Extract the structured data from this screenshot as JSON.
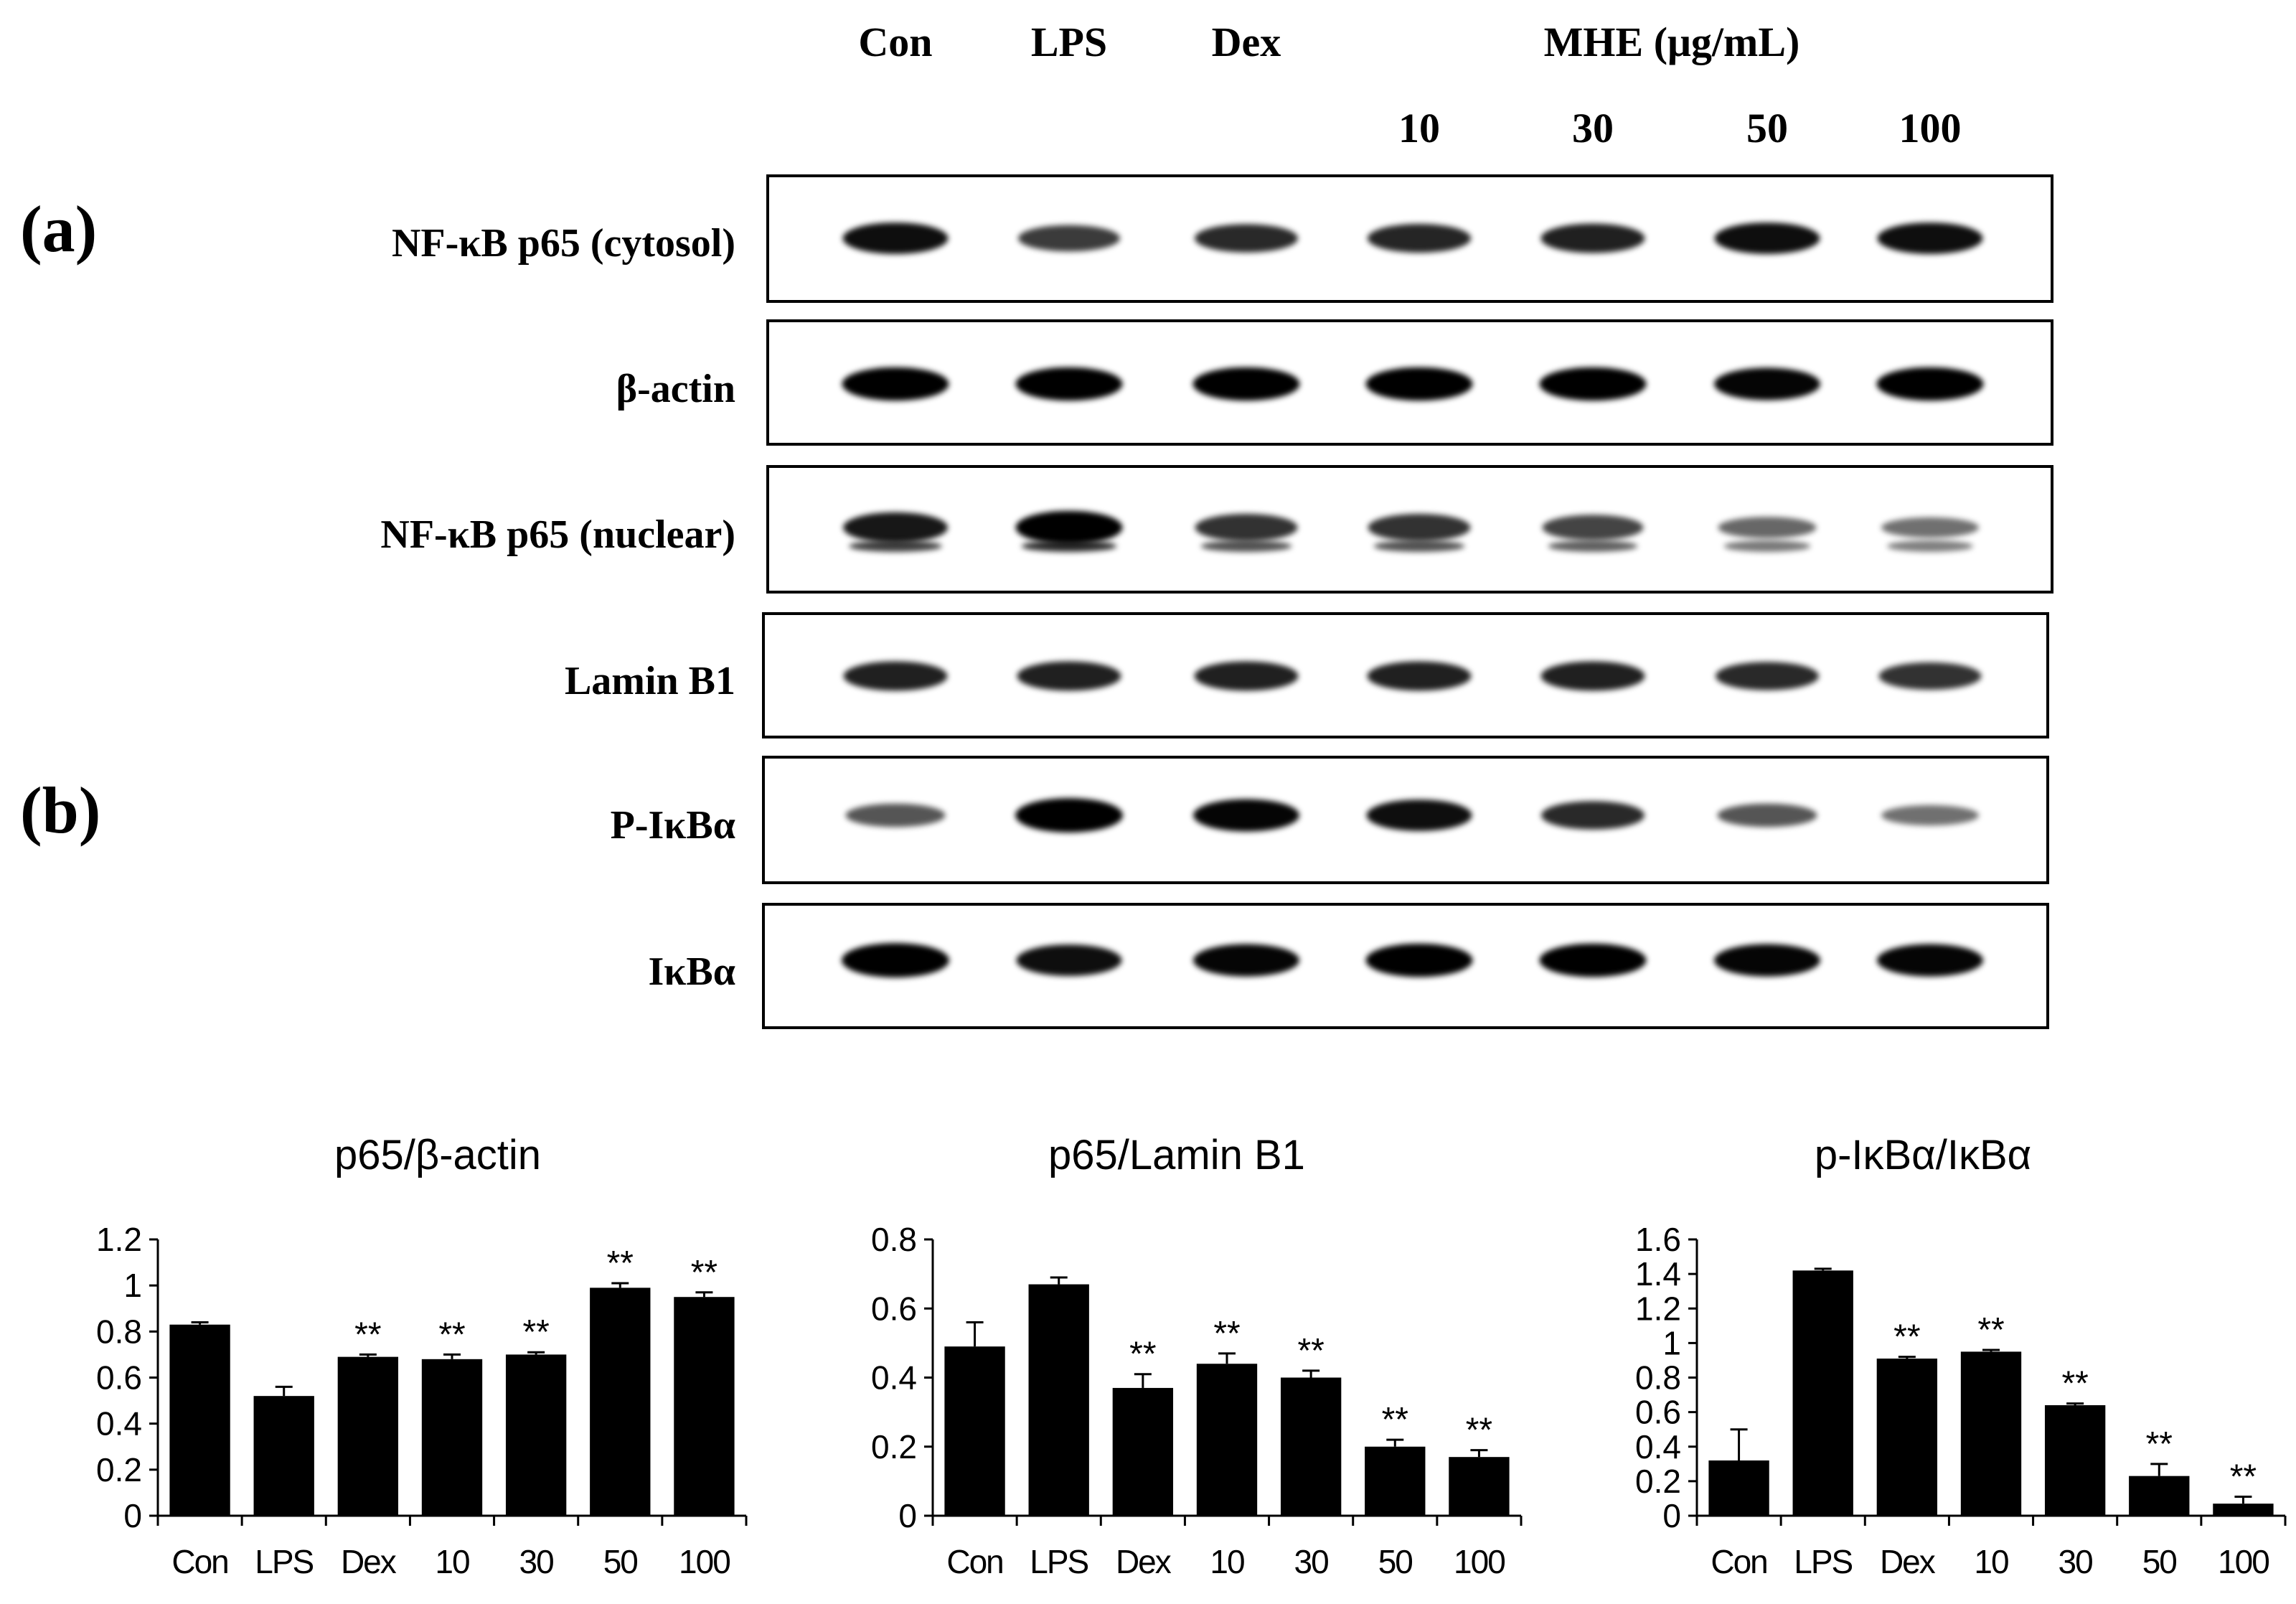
{
  "blot": {
    "column_headers": [
      "Con",
      "LPS",
      "Dex"
    ],
    "mhe_header": "MHE (μg/mL)",
    "doses": [
      "10",
      "30",
      "50",
      "100"
    ],
    "panel_a_label": "(a)",
    "panel_b_label": "(b)",
    "rows": [
      {
        "label": "NF-κB p65 (cytosol)",
        "intensity": [
          0.85,
          0.6,
          0.7,
          0.72,
          0.75,
          0.85,
          0.85
        ],
        "double": false
      },
      {
        "label": "β-actin",
        "intensity": [
          0.95,
          0.95,
          0.95,
          0.95,
          0.95,
          0.9,
          0.95
        ],
        "double": false
      },
      {
        "label": "NF-κB p65 (nuclear)",
        "intensity": [
          0.8,
          0.95,
          0.65,
          0.65,
          0.55,
          0.35,
          0.3
        ],
        "double": true
      },
      {
        "label": "Lamin B1",
        "intensity": [
          0.75,
          0.75,
          0.75,
          0.75,
          0.75,
          0.7,
          0.65
        ],
        "double": false
      },
      {
        "label": "P-IκBα",
        "intensity": [
          0.45,
          1.0,
          0.9,
          0.85,
          0.7,
          0.45,
          0.3
        ],
        "double": false
      },
      {
        "label": "IκBα",
        "intensity": [
          1.0,
          0.85,
          0.9,
          0.95,
          0.95,
          0.9,
          0.9
        ],
        "double": false
      }
    ]
  },
  "chart_data": [
    {
      "type": "bar",
      "title": "p65/β-actin",
      "categories": [
        "Con",
        "LPS",
        "Dex",
        "10",
        "30",
        "50",
        "100"
      ],
      "values": [
        0.83,
        0.52,
        0.69,
        0.68,
        0.7,
        0.99,
        0.95
      ],
      "errors": [
        0.01,
        0.04,
        0.01,
        0.02,
        0.01,
        0.02,
        0.02
      ],
      "annotations": [
        "",
        "",
        "**",
        "**",
        "**",
        "**",
        "**"
      ],
      "ylim": [
        0,
        1.2
      ],
      "yticks": [
        "0",
        "0.2",
        "0.4",
        "0.6",
        "0.8",
        "1",
        "1.2"
      ],
      "ytick_values": [
        0,
        0.2,
        0.4,
        0.6,
        0.8,
        1.0,
        1.2
      ],
      "xlabel": "",
      "ylabel": ""
    },
    {
      "type": "bar",
      "title": "p65/Lamin B1",
      "categories": [
        "Con",
        "LPS",
        "Dex",
        "10",
        "30",
        "50",
        "100"
      ],
      "values": [
        0.49,
        0.67,
        0.37,
        0.44,
        0.4,
        0.2,
        0.17
      ],
      "errors": [
        0.07,
        0.02,
        0.04,
        0.03,
        0.02,
        0.02,
        0.02
      ],
      "annotations": [
        "",
        "",
        "**",
        "**",
        "**",
        "**",
        "**"
      ],
      "ylim": [
        0,
        0.8
      ],
      "yticks": [
        "0",
        "0.2",
        "0.4",
        "0.6",
        "0.8"
      ],
      "ytick_values": [
        0,
        0.2,
        0.4,
        0.6,
        0.8
      ],
      "xlabel": "",
      "ylabel": ""
    },
    {
      "type": "bar",
      "title": "p-IκBα/IκBα",
      "categories": [
        "Con",
        "LPS",
        "Dex",
        "10",
        "30",
        "50",
        "100"
      ],
      "values": [
        0.32,
        1.42,
        0.91,
        0.95,
        0.64,
        0.23,
        0.07
      ],
      "errors": [
        0.18,
        0.01,
        0.01,
        0.01,
        0.01,
        0.07,
        0.04
      ],
      "annotations": [
        "",
        "",
        "**",
        "**",
        "**",
        "**",
        "**"
      ],
      "ylim": [
        0,
        1.6
      ],
      "yticks": [
        "0",
        "0.2",
        "0.4",
        "0.6",
        "0.8",
        "1",
        "1.2",
        "1.4",
        "1.6"
      ],
      "ytick_values": [
        0,
        0.2,
        0.4,
        0.6,
        0.8,
        1.0,
        1.2,
        1.4,
        1.6
      ],
      "xlabel": "",
      "ylabel": ""
    }
  ]
}
